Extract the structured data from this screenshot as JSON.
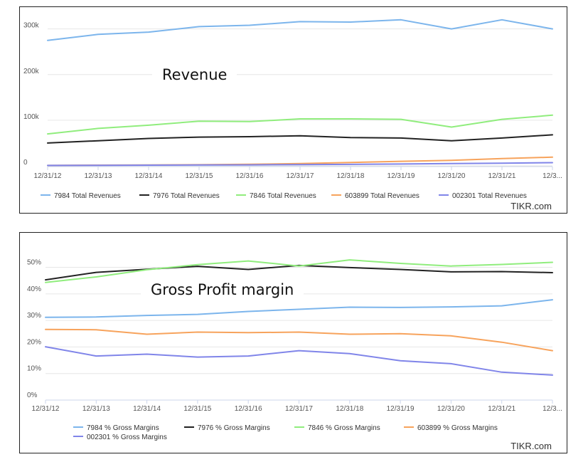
{
  "chart_data": [
    {
      "type": "line",
      "title": "Revenue",
      "watermark": "TIKR.com",
      "categories": [
        "12/31/12",
        "12/31/13",
        "12/31/14",
        "12/31/15",
        "12/31/16",
        "12/31/17",
        "12/31/18",
        "12/31/19",
        "12/31/20",
        "12/31/21",
        "12/3..."
      ],
      "ytick_labels": [
        "0",
        "100k",
        "200k",
        "300k"
      ],
      "ytick_values": [
        0,
        100000,
        200000,
        300000
      ],
      "ylim": [
        0,
        340000
      ],
      "legend_position": "bottom",
      "series": [
        {
          "name": "7984 Total Revenues",
          "color": "#7cb5ec",
          "values": [
            275000,
            288000,
            293000,
            305000,
            308000,
            316000,
            315000,
            320000,
            300000,
            320000,
            300000
          ]
        },
        {
          "name": "7976 Total Revenues",
          "color": "#222222",
          "values": [
            50000,
            55000,
            60000,
            63000,
            64000,
            66000,
            62000,
            61000,
            55000,
            61000,
            68000
          ]
        },
        {
          "name": "7846 Total Revenues",
          "color": "#90ed7d",
          "values": [
            70000,
            82000,
            89000,
            98000,
            97000,
            103000,
            103000,
            102000,
            85000,
            102000,
            111000
          ]
        },
        {
          "name": "603899 Total Revenues",
          "color": "#f7a35c",
          "values": [
            1000,
            1500,
            2000,
            2500,
            3500,
            5000,
            7500,
            10000,
            12000,
            16000,
            19000
          ]
        },
        {
          "name": "002301 Total Revenues",
          "color": "#8085e9",
          "values": [
            1000,
            1300,
            1600,
            1900,
            2200,
            2800,
            3200,
            4000,
            5000,
            6000,
            7000
          ]
        }
      ]
    },
    {
      "type": "line",
      "title": "Gross Profit margin",
      "watermark": "TIKR.com",
      "categories": [
        "12/31/12",
        "12/31/13",
        "12/31/14",
        "12/31/15",
        "12/31/16",
        "12/31/17",
        "12/31/18",
        "12/31/19",
        "12/31/20",
        "12/31/21",
        "12/3..."
      ],
      "ytick_labels": [
        "0%",
        "10%",
        "20%",
        "30%",
        "40%",
        "50%"
      ],
      "ytick_values": [
        0,
        10,
        20,
        30,
        40,
        50
      ],
      "ylim": [
        0,
        59
      ],
      "legend_position": "bottom",
      "series": [
        {
          "name": "7984 % Gross Margins",
          "color": "#7cb5ec",
          "values": [
            31.2,
            31.3,
            31.9,
            32.3,
            33.4,
            34.2,
            35.0,
            34.9,
            35.1,
            35.5,
            37.8
          ]
        },
        {
          "name": "7976 % Gross Margins",
          "color": "#222222",
          "values": [
            45.3,
            48.1,
            49.3,
            50.4,
            49.2,
            50.7,
            49.9,
            49.2,
            48.3,
            48.4,
            48.0
          ]
        },
        {
          "name": "7846 % Gross Margins",
          "color": "#90ed7d",
          "values": [
            44.3,
            46.4,
            49.1,
            51.0,
            52.4,
            50.5,
            52.8,
            51.5,
            50.5,
            51.1,
            51.9
          ]
        },
        {
          "name": "603899 % Gross Margins",
          "color": "#f7a35c",
          "values": [
            26.6,
            26.5,
            24.8,
            25.6,
            25.4,
            25.6,
            24.8,
            25.0,
            24.2,
            21.8,
            18.6
          ]
        },
        {
          "name": "002301 % Gross Margins",
          "color": "#8085e9",
          "values": [
            20.1,
            16.6,
            17.3,
            16.2,
            16.6,
            18.6,
            17.5,
            14.8,
            13.7,
            10.5,
            9.4
          ]
        }
      ]
    }
  ]
}
